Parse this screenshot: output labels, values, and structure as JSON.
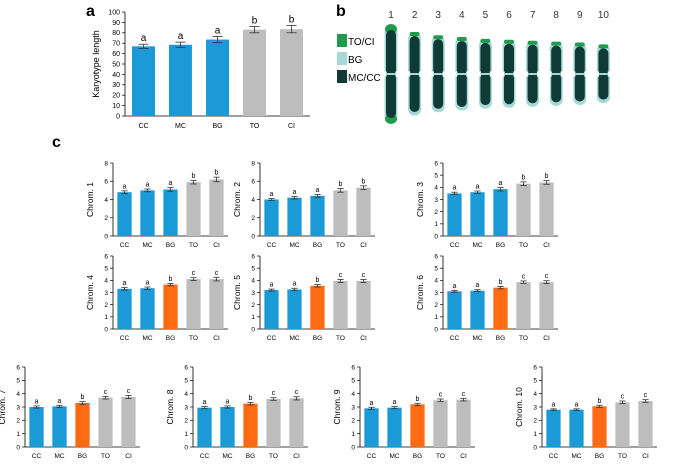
{
  "panels": {
    "a": "a",
    "b": "b",
    "c": "c"
  },
  "colors": {
    "mc_cc": "#1a9ad6",
    "bg_orange": "#ff6a13",
    "to_ci": "#bdbdbd",
    "legend_to_ci": "#1f9b4c",
    "legend_bg": "#a6d9d6",
    "legend_mc_cc": "#0f3a35"
  },
  "legend": [
    {
      "label": "TO/CI",
      "color": "#1f9b4c"
    },
    {
      "label": "BG",
      "color": "#a6d9d6"
    },
    {
      "label": "MC/CC",
      "color": "#0f3a35"
    }
  ],
  "chromosome_numbers": [
    "1",
    "2",
    "3",
    "4",
    "5",
    "6",
    "7",
    "8",
    "9",
    "10"
  ],
  "chart_data": [
    {
      "id": "a",
      "type": "bar",
      "title": "",
      "xlabel": "",
      "ylabel": "Karyotype length",
      "ylim": [
        0,
        100
      ],
      "yticks": [
        0,
        10,
        20,
        30,
        40,
        50,
        60,
        70,
        80,
        90,
        100
      ],
      "categories": [
        "CC",
        "MC",
        "BG",
        "TO",
        "CI"
      ],
      "values": [
        67,
        68.5,
        73.5,
        83,
        83.5
      ],
      "errors": [
        2,
        2.5,
        3,
        3,
        3.5
      ],
      "letters": [
        "a",
        "a",
        "a",
        "b",
        "b"
      ],
      "colors": [
        "#1a9ad6",
        "#1a9ad6",
        "#1a9ad6",
        "#bdbdbd",
        "#bdbdbd"
      ]
    },
    {
      "id": "c1",
      "type": "bar",
      "ylabel": "Chrom. 1",
      "ylim": [
        0,
        8
      ],
      "yticks": [
        0,
        2,
        4,
        6,
        8
      ],
      "categories": [
        "CC",
        "MC",
        "BG",
        "TO",
        "CI"
      ],
      "values": [
        4.8,
        5.0,
        5.1,
        5.9,
        6.2
      ],
      "errors": [
        0.15,
        0.15,
        0.2,
        0.2,
        0.25
      ],
      "letters": [
        "a",
        "a",
        "a",
        "b",
        "b"
      ],
      "colors": [
        "#1a9ad6",
        "#1a9ad6",
        "#1a9ad6",
        "#bdbdbd",
        "#bdbdbd"
      ]
    },
    {
      "id": "c2",
      "type": "bar",
      "ylabel": "Chrom. 2",
      "ylim": [
        0,
        8
      ],
      "yticks": [
        0,
        2,
        4,
        6,
        8
      ],
      "categories": [
        "CC",
        "MC",
        "BG",
        "TO",
        "CI"
      ],
      "values": [
        4.0,
        4.2,
        4.4,
        5.0,
        5.3
      ],
      "errors": [
        0.1,
        0.15,
        0.15,
        0.2,
        0.2
      ],
      "letters": [
        "a",
        "a",
        "a",
        "b",
        "b"
      ],
      "colors": [
        "#1a9ad6",
        "#1a9ad6",
        "#1a9ad6",
        "#bdbdbd",
        "#bdbdbd"
      ]
    },
    {
      "id": "c3",
      "type": "bar",
      "ylabel": "Chrom. 3",
      "ylim": [
        0,
        6
      ],
      "yticks": [
        0,
        1,
        2,
        3,
        4,
        5,
        6
      ],
      "categories": [
        "CC",
        "MC",
        "BG",
        "TO",
        "CI"
      ],
      "values": [
        3.5,
        3.6,
        3.85,
        4.3,
        4.4
      ],
      "errors": [
        0.1,
        0.1,
        0.15,
        0.15,
        0.15
      ],
      "letters": [
        "a",
        "a",
        "a",
        "b",
        "b"
      ],
      "colors": [
        "#1a9ad6",
        "#1a9ad6",
        "#1a9ad6",
        "#bdbdbd",
        "#bdbdbd"
      ]
    },
    {
      "id": "c4",
      "type": "bar",
      "ylabel": "Chrom. 4",
      "ylim": [
        0,
        6
      ],
      "yticks": [
        0,
        1,
        2,
        3,
        4,
        5,
        6
      ],
      "categories": [
        "CC",
        "MC",
        "BG",
        "TO",
        "CI"
      ],
      "values": [
        3.3,
        3.35,
        3.65,
        4.1,
        4.1
      ],
      "errors": [
        0.1,
        0.1,
        0.1,
        0.12,
        0.15
      ],
      "letters": [
        "a",
        "a",
        "b",
        "c",
        "c"
      ],
      "colors": [
        "#1a9ad6",
        "#1a9ad6",
        "#ff6a13",
        "#bdbdbd",
        "#bdbdbd"
      ]
    },
    {
      "id": "c5",
      "type": "bar",
      "ylabel": "Chrom. 5",
      "ylim": [
        0,
        6
      ],
      "yticks": [
        0,
        1,
        2,
        3,
        4,
        5,
        6
      ],
      "categories": [
        "CC",
        "MC",
        "BG",
        "TO",
        "CI"
      ],
      "values": [
        3.2,
        3.25,
        3.55,
        3.95,
        3.95
      ],
      "errors": [
        0.08,
        0.1,
        0.1,
        0.12,
        0.12
      ],
      "letters": [
        "a",
        "a",
        "b",
        "c",
        "c"
      ],
      "colors": [
        "#1a9ad6",
        "#1a9ad6",
        "#ff6a13",
        "#bdbdbd",
        "#bdbdbd"
      ]
    },
    {
      "id": "c6",
      "type": "bar",
      "ylabel": "Chrom. 6",
      "ylim": [
        0,
        6
      ],
      "yticks": [
        0,
        1,
        2,
        3,
        4,
        5,
        6
      ],
      "categories": [
        "CC",
        "MC",
        "BG",
        "TO",
        "CI"
      ],
      "values": [
        3.1,
        3.15,
        3.4,
        3.85,
        3.85
      ],
      "errors": [
        0.08,
        0.08,
        0.1,
        0.1,
        0.12
      ],
      "letters": [
        "a",
        "a",
        "b",
        "c",
        "c"
      ],
      "colors": [
        "#1a9ad6",
        "#1a9ad6",
        "#ff6a13",
        "#bdbdbd",
        "#bdbdbd"
      ]
    },
    {
      "id": "c7",
      "type": "bar",
      "ylabel": "Chrom. 7",
      "ylim": [
        0,
        6
      ],
      "yticks": [
        0,
        1,
        2,
        3,
        4,
        5,
        6
      ],
      "categories": [
        "CC",
        "MC",
        "BG",
        "TO",
        "CI"
      ],
      "values": [
        3.0,
        3.05,
        3.3,
        3.7,
        3.75
      ],
      "errors": [
        0.08,
        0.08,
        0.1,
        0.1,
        0.12
      ],
      "letters": [
        "a",
        "a",
        "b",
        "c",
        "c"
      ],
      "colors": [
        "#1a9ad6",
        "#1a9ad6",
        "#ff6a13",
        "#bdbdbd",
        "#bdbdbd"
      ]
    },
    {
      "id": "c8",
      "type": "bar",
      "ylabel": "Chrom. 8",
      "ylim": [
        0,
        6
      ],
      "yticks": [
        0,
        1,
        2,
        3,
        4,
        5,
        6
      ],
      "categories": [
        "CC",
        "MC",
        "BG",
        "TO",
        "CI"
      ],
      "values": [
        2.95,
        3.0,
        3.25,
        3.6,
        3.65
      ],
      "errors": [
        0.08,
        0.08,
        0.1,
        0.1,
        0.12
      ],
      "letters": [
        "a",
        "a",
        "b",
        "c",
        "c"
      ],
      "colors": [
        "#1a9ad6",
        "#1a9ad6",
        "#ff6a13",
        "#bdbdbd",
        "#bdbdbd"
      ]
    },
    {
      "id": "c9",
      "type": "bar",
      "ylabel": "Chrom. 9",
      "ylim": [
        0,
        6
      ],
      "yticks": [
        0,
        1,
        2,
        3,
        4,
        5,
        6
      ],
      "categories": [
        "CC",
        "MC",
        "BG",
        "TO",
        "CI"
      ],
      "values": [
        2.9,
        2.95,
        3.2,
        3.5,
        3.55
      ],
      "errors": [
        0.08,
        0.08,
        0.08,
        0.1,
        0.1
      ],
      "letters": [
        "a",
        "a",
        "b",
        "c",
        "c"
      ],
      "colors": [
        "#1a9ad6",
        "#1a9ad6",
        "#ff6a13",
        "#bdbdbd",
        "#bdbdbd"
      ]
    },
    {
      "id": "c10",
      "type": "bar",
      "ylabel": "Chrom. 10",
      "ylim": [
        0,
        6
      ],
      "yticks": [
        0,
        1,
        2,
        3,
        4,
        5,
        6
      ],
      "categories": [
        "CC",
        "MC",
        "BG",
        "TO",
        "CI"
      ],
      "values": [
        2.8,
        2.8,
        3.05,
        3.35,
        3.45
      ],
      "errors": [
        0.06,
        0.06,
        0.08,
        0.1,
        0.1
      ],
      "letters": [
        "a",
        "a",
        "b",
        "c",
        "c"
      ],
      "colors": [
        "#1a9ad6",
        "#1a9ad6",
        "#ff6a13",
        "#bdbdbd",
        "#bdbdbd"
      ]
    }
  ]
}
